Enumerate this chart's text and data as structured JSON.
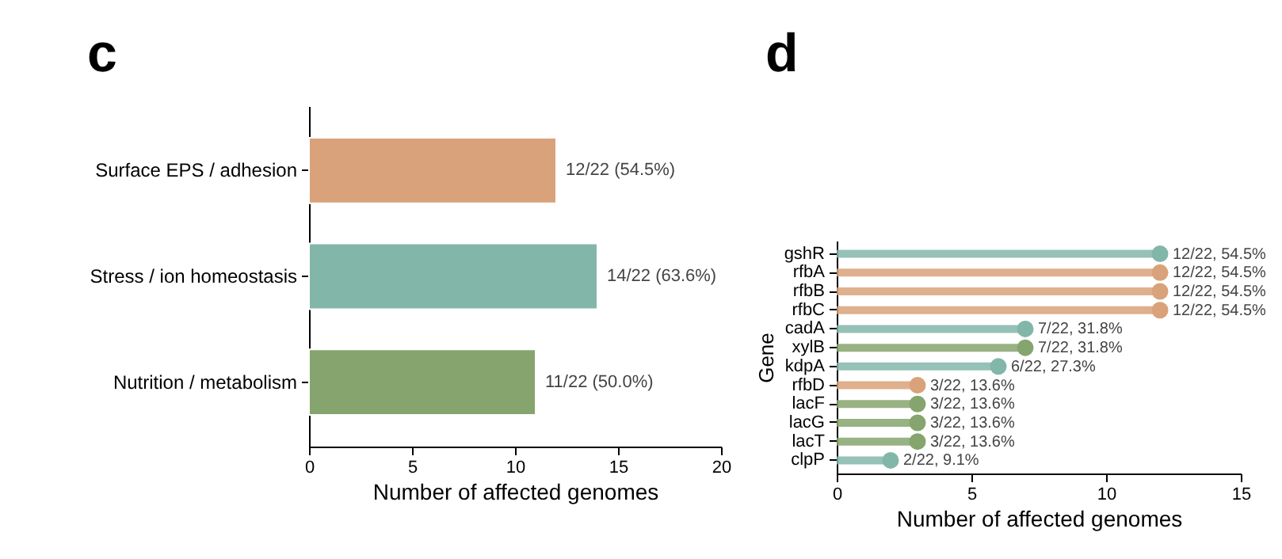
{
  "chart_data": [
    {
      "type": "bar",
      "orientation": "horizontal",
      "title": "c",
      "xlabel": "Number of affected genomes",
      "categories": [
        "Surface EPS / adhesion",
        "Stress / ion homeostasis",
        "Nutrition / metabolism"
      ],
      "values": [
        12,
        14,
        11
      ],
      "colors": [
        "#d9a27a",
        "#82b6a9",
        "#86a46d"
      ],
      "value_labels": [
        "12/22 (54.5%)",
        "14/22 (63.6%)",
        "11/22 (50.0%)"
      ],
      "xlim": [
        0,
        20
      ],
      "xticks": [
        0,
        5,
        10,
        15,
        20
      ],
      "grid": false
    },
    {
      "type": "lollipop",
      "orientation": "horizontal",
      "title": "d",
      "xlabel": "Number of affected genomes",
      "ylabel": "Gene",
      "categories": [
        "gshR",
        "rfbA",
        "rfbB",
        "rfbC",
        "cadA",
        "xylB",
        "kdpA",
        "rfbD",
        "lacF",
        "lacG",
        "lacT",
        "clpP"
      ],
      "values": [
        12,
        12,
        12,
        12,
        7,
        7,
        6,
        3,
        3,
        3,
        3,
        2
      ],
      "colors": [
        "#82b6a9",
        "#d9a27a",
        "#d9a27a",
        "#d9a27a",
        "#82b6a9",
        "#86a46d",
        "#82b6a9",
        "#d9a27a",
        "#86a46d",
        "#86a46d",
        "#86a46d",
        "#82b6a9"
      ],
      "value_labels": [
        "12/22, 54.5%",
        "12/22, 54.5%",
        "12/22, 54.5%",
        "12/22, 54.5%",
        "7/22, 31.8%",
        "7/22, 31.8%",
        "6/22, 27.3%",
        "3/22, 13.6%",
        "3/22, 13.6%",
        "3/22, 13.6%",
        "3/22, 13.6%",
        "2/22, 9.1%"
      ],
      "xlim": [
        0,
        15
      ],
      "xticks": [
        0,
        5,
        10,
        15
      ],
      "grid": false
    }
  ]
}
